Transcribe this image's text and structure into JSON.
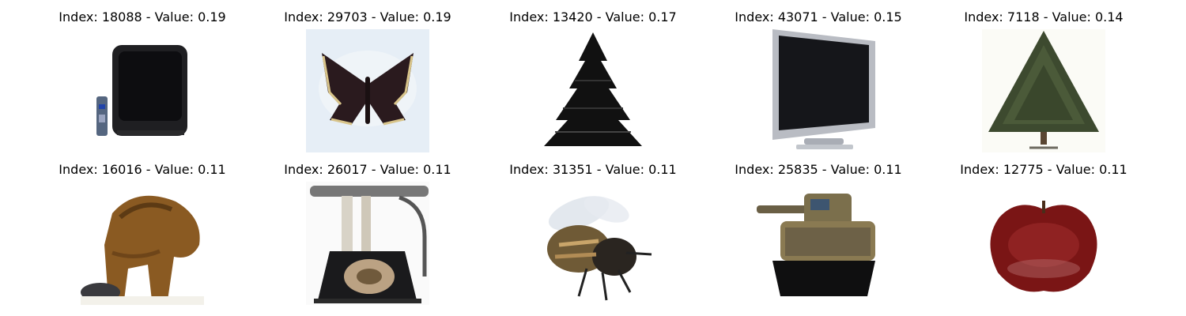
{
  "grid": {
    "items": [
      {
        "index": "18088",
        "value": "0.19",
        "title": "Index: 18088 - Value: 0.19",
        "subject": "television"
      },
      {
        "index": "29703",
        "value": "0.19",
        "title": "Index: 29703 - Value: 0.19",
        "subject": "butterfly"
      },
      {
        "index": "13420",
        "value": "0.17",
        "title": "Index: 13420 - Value: 0.17",
        "subject": "pine-tree"
      },
      {
        "index": "43071",
        "value": "0.15",
        "title": "Index: 43071 - Value: 0.15",
        "subject": "flat-monitor"
      },
      {
        "index": "7118",
        "value": "0.14",
        "title": "Index: 7118 - Value: 0.14",
        "subject": "christmas-tree"
      },
      {
        "index": "16016",
        "value": "0.11",
        "title": "Index: 16016 - Value: 0.11",
        "subject": "animal"
      },
      {
        "index": "26017",
        "value": "0.11",
        "title": "Index: 26017 - Value: 0.11",
        "subject": "telephone"
      },
      {
        "index": "31351",
        "value": "0.11",
        "title": "Index: 31351 - Value: 0.11",
        "subject": "bee"
      },
      {
        "index": "25835",
        "value": "0.11",
        "title": "Index: 25835 - Value: 0.11",
        "subject": "tank"
      },
      {
        "index": "12775",
        "value": "0.11",
        "title": "Index: 12775 - Value: 0.11",
        "subject": "apple"
      }
    ]
  }
}
